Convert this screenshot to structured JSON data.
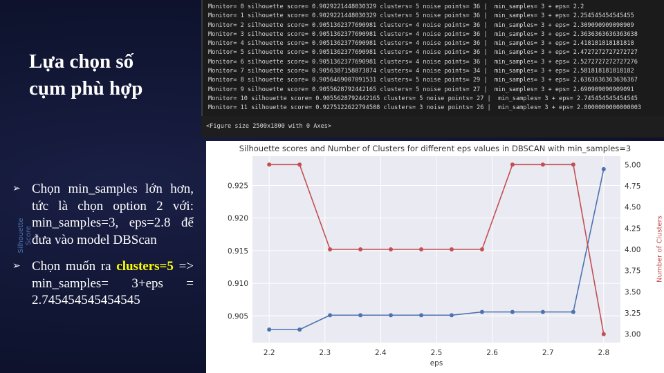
{
  "slide": {
    "title_line1": "Lựa chọn số",
    "title_line2": "cụm phù hợp",
    "bullets": [
      {
        "mark": "➢",
        "text": "Chọn min_samples lớn hơn, tức là chọn option 2 với: min_samples=3, eps=2.8 để đưa vào model DBScan"
      },
      {
        "mark": "➢",
        "pre": "Chọn muốn ra ",
        "highlight": "clusters=5",
        "post": " => min_samples= 3+eps = 2.745454545454545"
      }
    ]
  },
  "console": {
    "lines": [
      "Monitor= 0 silhouette score= 0.9029221448030329 clusters= 5 noise points= 36 |  min_samples= 3 + eps= 2.2",
      "Monitor= 1 silhouette score= 0.9029221448030329 clusters= 5 noise points= 36 |  min_samples= 3 + eps= 2.254545454545455",
      "Monitor= 2 silhouette score= 0.9051362377690981 clusters= 4 noise points= 36 |  min_samples= 3 + eps= 2.309090909090909",
      "Monitor= 3 silhouette score= 0.9051362377690981 clusters= 4 noise points= 36 |  min_samples= 3 + eps= 2.3636363636363638",
      "Monitor= 4 silhouette score= 0.9051362377690981 clusters= 4 noise points= 36 |  min_samples= 3 + eps= 2.418181818181818",
      "Monitor= 5 silhouette score= 0.9051362377690981 clusters= 4 noise points= 36 |  min_samples= 3 + eps= 2.4727272727272727",
      "Monitor= 6 silhouette score= 0.9051362377690981 clusters= 4 noise points= 36 |  min_samples= 3 + eps= 2.5272727272727276",
      "Monitor= 7 silhouette score= 0.9056387158873874 clusters= 4 noise points= 34 |  min_samples= 3 + eps= 2.581818181818182",
      "Monitor= 8 silhouette score= 0.9056469007091531 clusters= 5 noise points= 29 |  min_samples= 3 + eps= 2.6363636363636367",
      "Monitor= 9 silhouette score= 0.9055628792442165 clusters= 5 noise points= 27 |  min_samples= 3 + eps= 2.690909090909091",
      "Monitor= 10 silhouette score= 0.9055628792442165 clusters= 5 noise points= 27 |  min_samples= 3 + eps= 2.745454545454545",
      "Monitor= 11 silhouette score= 0.9275122622794508 clusters= 3 noise points= 26 |  min_samples= 3 + eps= 2.8000000000000003"
    ],
    "figure_size_text": "<Figure size 2500x1800 with 0 Axes>"
  },
  "colors": {
    "score_line": "#4c72b0",
    "clusters_line": "#c44e52",
    "highlight": "#ffff00",
    "slide_bg": "#0f1430"
  },
  "chart_data": {
    "type": "line",
    "title": "Silhouette scores and Number of Clusters for different eps values in DBSCAN with min_samples=3",
    "xlabel": "eps",
    "ylabel_left": "Silhouette Score",
    "ylabel_right": "Number of Clusters",
    "x": [
      2.2,
      2.254545,
      2.309091,
      2.363636,
      2.418182,
      2.472727,
      2.527273,
      2.581818,
      2.636364,
      2.690909,
      2.745455,
      2.8
    ],
    "series": [
      {
        "name": "Silhouette Score",
        "axis": "left",
        "values": [
          0.9029,
          0.9029,
          0.9051,
          0.9051,
          0.9051,
          0.9051,
          0.9051,
          0.9056,
          0.9056,
          0.9056,
          0.9056,
          0.9275
        ]
      },
      {
        "name": "Number of Clusters",
        "axis": "right",
        "values": [
          5,
          5,
          4,
          4,
          4,
          4,
          4,
          4,
          5,
          5,
          5,
          3
        ]
      }
    ],
    "xlim": [
      2.17,
      2.83
    ],
    "ylim_left": [
      0.9009,
      0.9295
    ],
    "ylim_right": [
      2.9,
      5.1
    ],
    "xticks": [
      2.2,
      2.3,
      2.4,
      2.5,
      2.6,
      2.7,
      2.8
    ],
    "xtick_labels": [
      "2.2",
      "2.3",
      "2.4",
      "2.5",
      "2.6",
      "2.7",
      "2.8"
    ],
    "yticks_left": [
      0.905,
      0.91,
      0.915,
      0.92,
      0.925
    ],
    "ytick_labels_left": [
      "0.905",
      "0.910",
      "0.915",
      "0.920",
      "0.925"
    ],
    "yticks_right": [
      3.0,
      3.25,
      3.5,
      3.75,
      4.0,
      4.25,
      4.5,
      4.75,
      5.0
    ],
    "ytick_labels_right": [
      "3.00",
      "3.25",
      "3.50",
      "3.75",
      "4.00",
      "4.25",
      "4.50",
      "4.75",
      "5.00"
    ],
    "grid": true
  }
}
